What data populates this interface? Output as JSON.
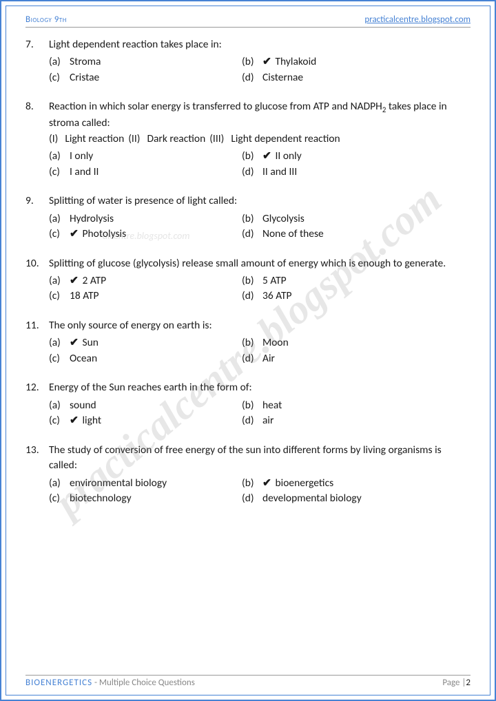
{
  "header": {
    "left": "Biology 9th",
    "right": "practicalcentre.blogspot.com"
  },
  "watermark": "practicalcentre.blogspot.com",
  "watermark2": "alcentre.blogspot.com",
  "colors": {
    "accent": "#4682d4",
    "text": "#1a1a1a",
    "muted": "#888888",
    "border": "#999999"
  },
  "questions": [
    {
      "num": "7.",
      "text": "Light dependent reaction takes place in:",
      "rows": [
        [
          {
            "label": "(a)",
            "text": "Stroma",
            "correct": false
          },
          {
            "label": "(b)",
            "text": "Thylakoid",
            "correct": true
          }
        ],
        [
          {
            "label": "(c)",
            "text": "Cristae",
            "correct": false
          },
          {
            "label": "(d)",
            "text": "Cisternae",
            "correct": false
          }
        ]
      ]
    },
    {
      "num": "8.",
      "text": "Reaction in which solar energy is transferred to glucose from ATP and NADPH",
      "text2": "takes place in stroma called:",
      "inline": [
        {
          "label": "(I)",
          "text": "Light reaction"
        },
        {
          "label": "(II)",
          "text": "Dark reaction"
        },
        {
          "label": "(III)",
          "text": "Light dependent reaction"
        }
      ],
      "rows": [
        [
          {
            "label": "(a)",
            "text": "I only",
            "correct": false
          },
          {
            "label": "(b)",
            "text": "II only",
            "correct": true
          }
        ],
        [
          {
            "label": "(c)",
            "text": "I and II",
            "correct": false
          },
          {
            "label": "(d)",
            "text": "II and III",
            "correct": false
          }
        ]
      ]
    },
    {
      "num": "9.",
      "text": "Splitting of water is presence of light called:",
      "rows": [
        [
          {
            "label": "(a)",
            "text": "Hydrolysis",
            "correct": false
          },
          {
            "label": "(b)",
            "text": "Glycolysis",
            "correct": false
          }
        ],
        [
          {
            "label": "(c)",
            "text": "Photolysis",
            "correct": true
          },
          {
            "label": "(d)",
            "text": "None of these",
            "correct": false
          }
        ]
      ]
    },
    {
      "num": "10.",
      "text": "Splitting of glucose (glycolysis) release small amount of energy which is enough to generate.",
      "rows": [
        [
          {
            "label": "(a)",
            "text": "2 ATP",
            "correct": true
          },
          {
            "label": "(b)",
            "text": "5 ATP",
            "correct": false
          }
        ],
        [
          {
            "label": "(c)",
            "text": "18 ATP",
            "correct": false
          },
          {
            "label": "(d)",
            "text": "36 ATP",
            "correct": false
          }
        ]
      ]
    },
    {
      "num": "11.",
      "text": "The only source of energy on earth is:",
      "rows": [
        [
          {
            "label": "(a)",
            "text": "Sun",
            "correct": true
          },
          {
            "label": "(b)",
            "text": "Moon",
            "correct": false
          }
        ],
        [
          {
            "label": "(c)",
            "text": "Ocean",
            "correct": false
          },
          {
            "label": "(d)",
            "text": "Air",
            "correct": false
          }
        ]
      ]
    },
    {
      "num": "12.",
      "text": "Energy of the Sun reaches earth in the form of:",
      "rows": [
        [
          {
            "label": "(a)",
            "text": "sound",
            "correct": false
          },
          {
            "label": "(b)",
            "text": "heat",
            "correct": false
          }
        ],
        [
          {
            "label": "(c)",
            "text": "light",
            "correct": true
          },
          {
            "label": "(d)",
            "text": "air",
            "correct": false
          }
        ]
      ]
    },
    {
      "num": "13.",
      "text": "The study of conversion of free energy of the sun into different forms by living organisms is called:",
      "rows": [
        [
          {
            "label": "(a)",
            "text": "environmental biology",
            "correct": false
          },
          {
            "label": "(b)",
            "text": "bioenergetics",
            "correct": true
          }
        ],
        [
          {
            "label": "(c)",
            "text": "biotechnology",
            "correct": false
          },
          {
            "label": "(d)",
            "text": "developmental biology",
            "correct": false
          }
        ]
      ]
    }
  ],
  "footer": {
    "title": "BIOENERGETICS",
    "sub": " - Multiple Choice Questions",
    "page_label": "Page |",
    "page_num": "2"
  }
}
